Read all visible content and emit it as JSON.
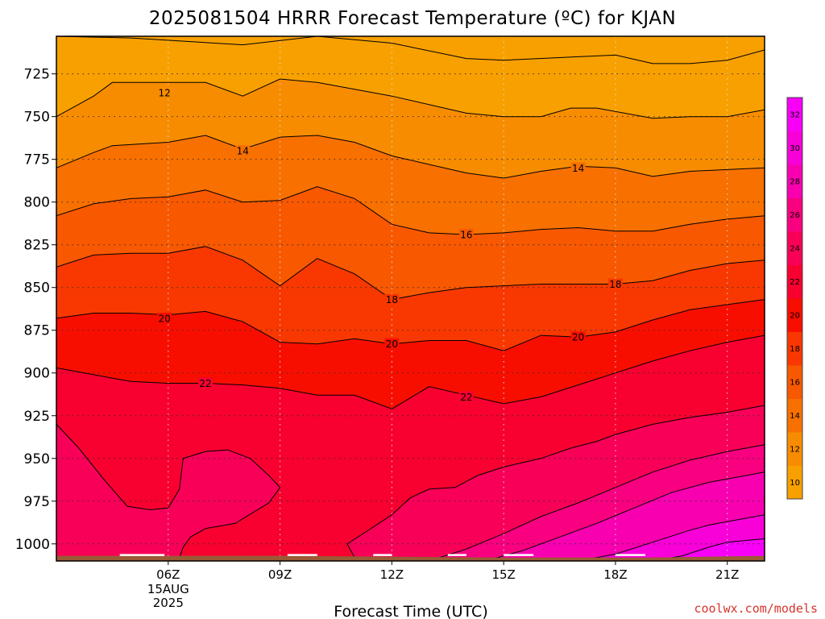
{
  "chart_data": {
    "type": "heatmap",
    "title": "2025081504 HRRR Forecast Temperature (ºC) for KJAN",
    "xlabel": "Forecast Time (UTC)",
    "ylabel": "",
    "x_ticks": [
      {
        "label": "06Z",
        "hour": 6,
        "sublabels": [
          "15AUG",
          "2025"
        ]
      },
      {
        "label": "09Z",
        "hour": 9
      },
      {
        "label": "12Z",
        "hour": 12
      },
      {
        "label": "15Z",
        "hour": 15
      },
      {
        "label": "18Z",
        "hour": 18
      },
      {
        "label": "21Z",
        "hour": 21
      }
    ],
    "xlim": [
      3,
      22
    ],
    "y_ticks": [
      725,
      750,
      775,
      800,
      825,
      850,
      875,
      900,
      925,
      950,
      975,
      1000
    ],
    "ylim_pressure_hpa": [
      1010,
      703
    ],
    "contour_interval": 2,
    "colorbar": {
      "ticks": [
        10,
        12,
        14,
        16,
        18,
        20,
        22,
        24,
        26,
        28,
        30,
        32
      ],
      "colors": [
        "#f8a000",
        "#f88c00",
        "#f87000",
        "#f85800",
        "#f83800",
        "#f80e00",
        "#f80030",
        "#f80058",
        "#f80080",
        "#f800b0",
        "#f800d8",
        "#f800f8"
      ]
    },
    "labeled_contours": [
      {
        "value": 12,
        "x": 5.9,
        "p": 736
      },
      {
        "value": 14,
        "x": 8.0,
        "p": 770
      },
      {
        "value": 14,
        "x": 17.0,
        "p": 780
      },
      {
        "value": 16,
        "x": 14.0,
        "p": 819
      },
      {
        "value": 18,
        "x": 12.0,
        "p": 857
      },
      {
        "value": 18,
        "x": 18.0,
        "p": 848
      },
      {
        "value": 20,
        "x": 5.9,
        "p": 868
      },
      {
        "value": 20,
        "x": 12.0,
        "p": 883
      },
      {
        "value": 20,
        "x": 17.0,
        "p": 879
      },
      {
        "value": 22,
        "x": 7.0,
        "p": 906
      },
      {
        "value": 22,
        "x": 14.0,
        "p": 914
      }
    ],
    "contours": [
      {
        "value": 10,
        "points": [
          [
            3,
            703
          ],
          [
            5,
            704
          ],
          [
            8,
            708
          ],
          [
            10,
            703
          ],
          [
            12,
            707
          ],
          [
            14,
            716
          ],
          [
            15,
            717
          ],
          [
            17,
            715
          ],
          [
            18,
            714
          ],
          [
            19,
            719
          ],
          [
            20,
            719
          ],
          [
            21,
            717
          ],
          [
            22,
            711
          ]
        ]
      },
      {
        "value": 12,
        "points": [
          [
            3,
            750
          ],
          [
            4,
            738
          ],
          [
            4.5,
            730
          ],
          [
            6,
            730
          ],
          [
            7,
            730
          ],
          [
            8,
            738
          ],
          [
            9,
            728
          ],
          [
            10,
            730
          ],
          [
            12,
            738
          ],
          [
            14,
            748
          ],
          [
            15,
            750
          ],
          [
            16,
            750
          ],
          [
            16.8,
            745
          ],
          [
            17.5,
            745
          ],
          [
            19,
            751
          ],
          [
            20,
            750
          ],
          [
            21,
            750
          ],
          [
            22,
            746
          ]
        ]
      },
      {
        "value": 14,
        "points": [
          [
            3,
            780
          ],
          [
            4,
            771
          ],
          [
            4.5,
            767
          ],
          [
            6,
            765
          ],
          [
            7,
            761
          ],
          [
            8,
            769
          ],
          [
            9,
            762
          ],
          [
            10,
            761
          ],
          [
            11,
            765
          ],
          [
            12,
            773
          ],
          [
            14,
            783
          ],
          [
            15,
            786
          ],
          [
            16,
            782
          ],
          [
            17,
            779
          ],
          [
            18,
            780
          ],
          [
            19,
            785
          ],
          [
            20,
            782
          ],
          [
            21,
            781
          ],
          [
            22,
            780
          ]
        ]
      },
      {
        "value": 16,
        "points": [
          [
            3,
            808
          ],
          [
            4,
            801
          ],
          [
            5,
            798
          ],
          [
            6,
            797
          ],
          [
            7,
            793
          ],
          [
            8,
            800
          ],
          [
            9,
            799
          ],
          [
            10,
            791
          ],
          [
            11,
            798
          ],
          [
            12,
            813
          ],
          [
            13,
            818
          ],
          [
            14,
            819
          ],
          [
            15,
            818
          ],
          [
            16,
            816
          ],
          [
            17,
            815
          ],
          [
            18,
            817
          ],
          [
            19,
            817
          ],
          [
            20,
            813
          ],
          [
            21,
            810
          ],
          [
            22,
            808
          ]
        ]
      },
      {
        "value": 18,
        "points": [
          [
            3,
            838
          ],
          [
            4,
            831
          ],
          [
            5,
            830
          ],
          [
            6,
            830
          ],
          [
            7,
            826
          ],
          [
            8,
            834
          ],
          [
            9,
            849
          ],
          [
            10,
            833
          ],
          [
            11,
            842
          ],
          [
            12,
            857
          ],
          [
            13,
            853
          ],
          [
            14,
            850
          ],
          [
            15,
            849
          ],
          [
            16,
            848
          ],
          [
            17,
            848
          ],
          [
            18,
            848
          ],
          [
            19,
            846
          ],
          [
            20,
            840
          ],
          [
            21,
            836
          ],
          [
            22,
            834
          ]
        ]
      },
      {
        "value": 20,
        "points": [
          [
            3,
            868
          ],
          [
            4,
            865
          ],
          [
            5,
            865
          ],
          [
            6,
            866
          ],
          [
            7,
            864
          ],
          [
            8,
            870
          ],
          [
            9,
            882
          ],
          [
            10,
            883
          ],
          [
            11,
            880
          ],
          [
            12,
            883
          ],
          [
            13,
            881
          ],
          [
            14,
            881
          ],
          [
            15,
            887
          ],
          [
            16,
            878
          ],
          [
            17,
            879
          ],
          [
            18,
            876
          ],
          [
            19,
            869
          ],
          [
            20,
            863
          ],
          [
            21,
            860
          ],
          [
            22,
            857
          ]
        ]
      },
      {
        "value": 22,
        "points": [
          [
            3,
            897
          ],
          [
            4,
            901
          ],
          [
            5,
            905
          ],
          [
            6,
            906
          ],
          [
            7,
            906
          ],
          [
            8,
            907
          ],
          [
            9,
            909
          ],
          [
            10,
            913
          ],
          [
            11,
            913
          ],
          [
            12,
            921
          ],
          [
            13,
            908
          ],
          [
            14,
            913
          ],
          [
            15,
            918
          ],
          [
            16,
            914
          ],
          [
            17,
            907
          ],
          [
            18,
            900
          ],
          [
            19,
            893
          ],
          [
            20,
            887
          ],
          [
            21,
            882
          ],
          [
            22,
            878
          ]
        ]
      },
      {
        "value": 24,
        "points": [
          [
            3,
            930
          ],
          [
            3.6,
            944
          ],
          [
            4.3,
            963
          ],
          [
            4.9,
            978
          ],
          [
            5.5,
            980
          ],
          [
            6,
            979
          ],
          [
            6.3,
            968
          ],
          [
            6.4,
            950
          ],
          [
            7,
            946
          ],
          [
            7.6,
            945
          ],
          [
            8.2,
            950
          ],
          [
            8.7,
            960
          ],
          [
            9,
            967
          ],
          [
            8.7,
            976
          ],
          [
            7.8,
            988
          ],
          [
            7,
            991
          ],
          [
            6.6,
            996
          ],
          [
            6.4,
            1002
          ],
          [
            6.3,
            1008
          ],
          [
            11,
            1008
          ],
          [
            10.8,
            1000
          ],
          [
            11.3,
            993
          ],
          [
            12,
            983
          ],
          [
            12.5,
            973
          ],
          [
            13,
            968
          ],
          [
            13.7,
            967
          ],
          [
            14.3,
            960
          ],
          [
            15,
            955
          ],
          [
            15.6,
            952
          ],
          [
            16,
            950
          ],
          [
            16.8,
            944
          ],
          [
            17.5,
            940
          ],
          [
            18,
            936
          ],
          [
            19,
            930
          ],
          [
            20,
            926
          ],
          [
            21,
            923
          ],
          [
            22,
            919
          ]
        ]
      },
      {
        "value": 26,
        "points": [
          [
            13,
            1010
          ],
          [
            14,
            1003
          ],
          [
            15,
            994
          ],
          [
            16,
            984
          ],
          [
            17,
            976
          ],
          [
            18,
            967
          ],
          [
            19,
            958
          ],
          [
            20,
            951
          ],
          [
            21,
            946
          ],
          [
            22,
            942
          ]
        ]
      },
      {
        "value": 28,
        "points": [
          [
            14.5,
            1010
          ],
          [
            15.5,
            1004
          ],
          [
            16.5,
            996
          ],
          [
            17.5,
            988
          ],
          [
            18.5,
            979
          ],
          [
            19.5,
            970
          ],
          [
            20.5,
            964
          ],
          [
            21,
            962
          ],
          [
            22,
            958
          ]
        ]
      },
      {
        "value": 30,
        "points": [
          [
            17,
            1010
          ],
          [
            18,
            1006
          ],
          [
            19,
            999
          ],
          [
            20,
            992
          ],
          [
            20.5,
            989
          ],
          [
            21,
            987
          ],
          [
            22,
            983
          ]
        ]
      },
      {
        "value": 32,
        "points": [
          [
            19,
            1010
          ],
          [
            19.8,
            1007
          ],
          [
            20.5,
            1002
          ],
          [
            21,
            999
          ],
          [
            22,
            997
          ]
        ]
      }
    ],
    "surface_pressure_hpa": [
      [
        3,
        1007
      ],
      [
        9,
        1007
      ],
      [
        15,
        1008
      ],
      [
        19,
        1008
      ],
      [
        22,
        1007
      ]
    ]
  },
  "credit": "coolwx.com/models"
}
